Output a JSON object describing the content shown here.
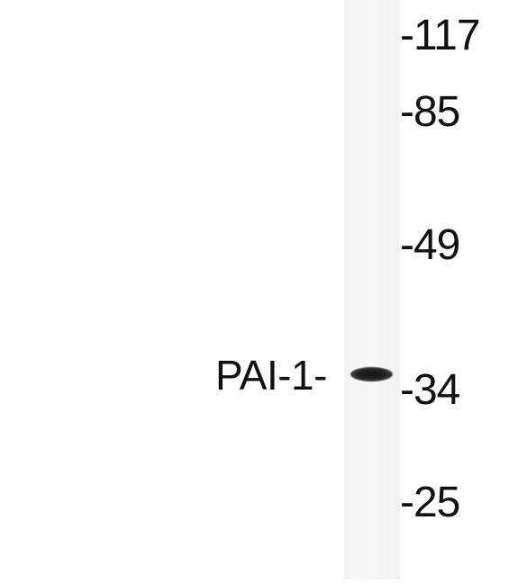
{
  "blot": {
    "protein_label": "PAI-1-",
    "band_intensity": "strong",
    "markers": {
      "m117": "-117",
      "m85": "-85",
      "m49": "-49",
      "m34": "-34",
      "m25": "-25"
    }
  },
  "colors": {
    "background": "#ffffff",
    "lane": "#f5f5f5",
    "band": "#1a1a1a",
    "text": "#111111"
  }
}
